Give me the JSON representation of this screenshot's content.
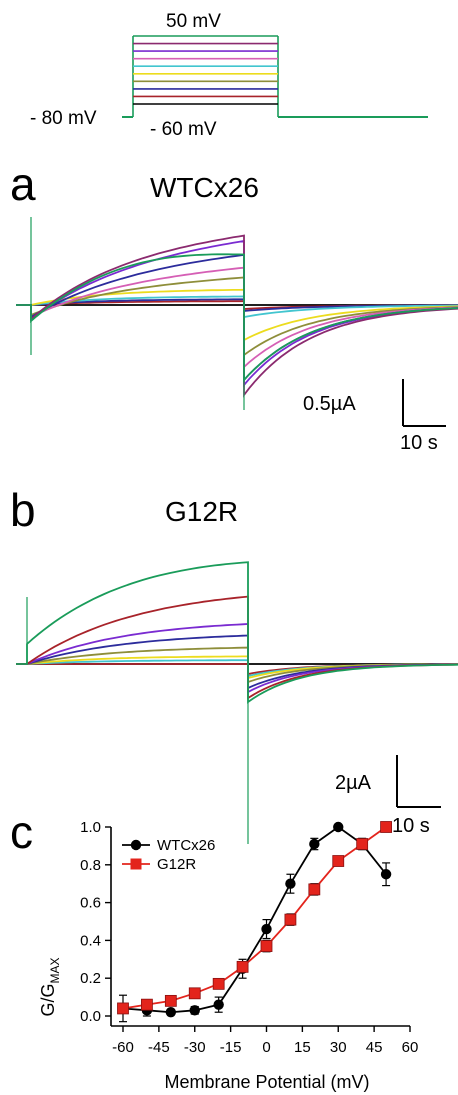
{
  "protocol": {
    "top_label": "50 mV",
    "hold_label": "- 80 mV",
    "bottom_label": "- 60 mV",
    "step_colors": [
      "#1a9c5a",
      "#8b2a6f",
      "#7a2bd1",
      "#d55fb5",
      "#42c5cf",
      "#ecdc1e",
      "#8e8e3a",
      "#2c2c9c",
      "#a8232a",
      "#000000"
    ]
  },
  "panel_a": {
    "letter": "a",
    "title": "WTCx26",
    "scale_current": "0.5µA",
    "scale_time": "10 s"
  },
  "panel_b": {
    "letter": "b",
    "title": "G12R",
    "scale_current": "2µA",
    "scale_time": "10 s"
  },
  "panel_c": {
    "letter": "c"
  },
  "chart_data": {
    "type": "line",
    "xlabel": "Membrane Potential (mV)",
    "ylabel_main": "G/G",
    "ylabel_sub": "MAX",
    "xlim": [
      -60,
      60
    ],
    "ylim": [
      0,
      1.0
    ],
    "xticks": [
      -60,
      -45,
      -30,
      -15,
      0,
      15,
      30,
      45,
      60
    ],
    "yticks": [
      0.0,
      0.2,
      0.4,
      0.6,
      0.8,
      1.0
    ],
    "ytick_labels": [
      "0.0",
      "0.2",
      "0.4",
      "0.6",
      "0.8",
      "1.0"
    ],
    "legend_position": "top-left",
    "series": [
      {
        "name": "WTCx26",
        "color": "#000000",
        "marker": "circle",
        "x": [
          -60,
          -50,
          -40,
          -30,
          -20,
          -10,
          0,
          10,
          20,
          30,
          40,
          50
        ],
        "y": [
          0.04,
          0.03,
          0.02,
          0.03,
          0.06,
          0.25,
          0.46,
          0.7,
          0.91,
          1.0,
          0.91,
          0.75
        ],
        "err": [
          0.07,
          0.03,
          0.01,
          0.02,
          0.04,
          0.05,
          0.05,
          0.05,
          0.03,
          0.0,
          0.03,
          0.06
        ]
      },
      {
        "name": "G12R",
        "color": "#e3241c",
        "marker": "square",
        "x": [
          -60,
          -50,
          -40,
          -30,
          -20,
          -10,
          0,
          10,
          20,
          30,
          40,
          50
        ],
        "y": [
          0.04,
          0.06,
          0.08,
          0.12,
          0.17,
          0.26,
          0.37,
          0.51,
          0.67,
          0.82,
          0.91,
          1.0
        ],
        "err": [
          0.01,
          0.01,
          0.01,
          0.02,
          0.02,
          0.02,
          0.03,
          0.03,
          0.03,
          0.02,
          0.02,
          0.0
        ]
      }
    ]
  }
}
